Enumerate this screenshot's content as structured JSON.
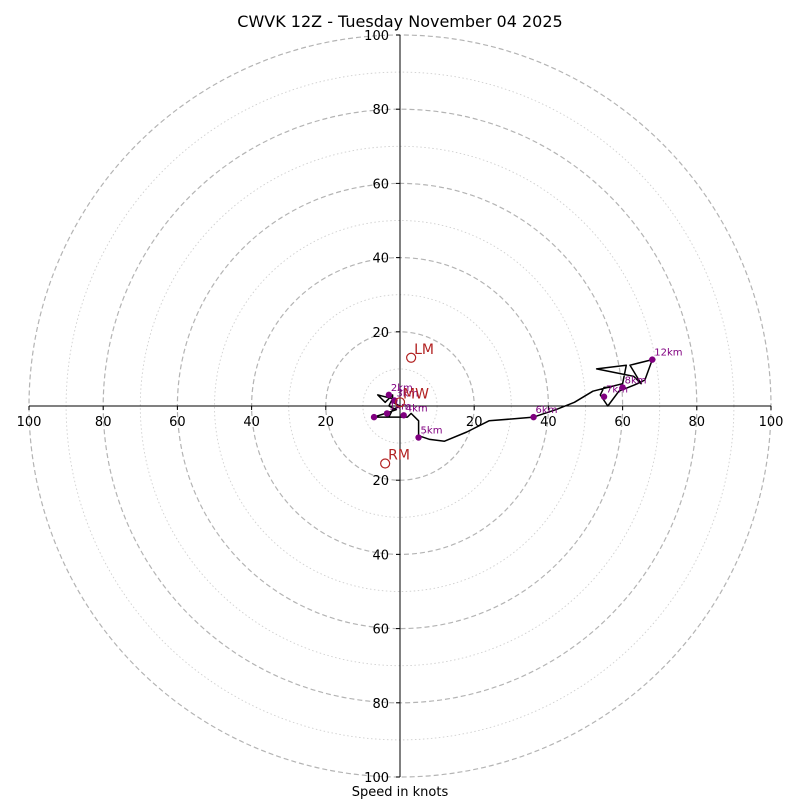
{
  "chart_data": {
    "type": "hodograph",
    "title": "CWVK 12Z - Tuesday November 04 2025",
    "xlabel": "Speed in knots",
    "max_speed": 100,
    "ring_step": 10,
    "labeled_rings": [
      20,
      40,
      60,
      80,
      100
    ],
    "x_tick_labels": [
      "100",
      "80",
      "60",
      "40",
      "20",
      "20",
      "40",
      "60",
      "80",
      "100"
    ],
    "x_tick_values": [
      -100,
      -80,
      -60,
      -40,
      -20,
      20,
      40,
      60,
      80,
      100
    ],
    "y_tick_labels": [
      "100",
      "80",
      "60",
      "40",
      "20",
      "20",
      "40",
      "60",
      "80",
      "100"
    ],
    "y_tick_values": [
      100,
      80,
      60,
      40,
      20,
      -20,
      -40,
      -60,
      -80,
      -100
    ],
    "colors": {
      "trace": "#000000",
      "height_marker": "#800080",
      "storm_motion": "#b22222",
      "ring": "#b4b4b4",
      "axis": "#000000"
    },
    "trace": [
      [
        -3,
        -3
      ],
      [
        -2,
        -1
      ],
      [
        0,
        0
      ],
      [
        -2,
        1
      ],
      [
        -2,
        3
      ],
      [
        -4,
        1
      ],
      [
        -6,
        3
      ],
      [
        -2,
        2
      ],
      [
        -3,
        0
      ],
      [
        -1,
        -1
      ],
      [
        -4,
        -2
      ],
      [
        -7,
        -3
      ],
      [
        -4,
        -3
      ],
      [
        -2,
        -3
      ],
      [
        -1,
        -3
      ],
      [
        2,
        -3
      ],
      [
        3,
        -2
      ],
      [
        5,
        -4
      ],
      [
        5,
        -8
      ],
      [
        8,
        -9
      ],
      [
        12,
        -9.5
      ],
      [
        18,
        -7
      ],
      [
        24,
        -4
      ],
      [
        30,
        -3.5
      ],
      [
        36,
        -3
      ],
      [
        42,
        -1
      ],
      [
        47,
        1
      ],
      [
        52,
        4
      ],
      [
        56,
        5
      ],
      [
        60,
        6
      ],
      [
        61,
        11
      ],
      [
        53,
        10
      ],
      [
        58,
        9
      ],
      [
        63,
        8
      ],
      [
        65,
        6
      ],
      [
        62,
        11
      ],
      [
        68,
        12.5
      ],
      [
        66,
        7
      ],
      [
        64,
        6
      ],
      [
        59,
        4
      ],
      [
        56,
        0
      ],
      [
        54,
        3
      ],
      [
        55,
        5
      ],
      [
        57,
        5
      ]
    ],
    "height_markers": [
      {
        "label": "",
        "u": -7,
        "v": -3
      },
      {
        "label": "1km",
        "u": -3.5,
        "v": -2
      },
      {
        "label": "2km",
        "u": -3,
        "v": 3
      },
      {
        "label": "3km",
        "u": -1.5,
        "v": 1.5
      },
      {
        "label": "4km",
        "u": 1,
        "v": -2.5
      },
      {
        "label": "5km",
        "u": 5,
        "v": -8.5
      },
      {
        "label": "6km",
        "u": 36,
        "v": -3
      },
      {
        "label": "7km",
        "u": 55,
        "v": 2.5
      },
      {
        "label": "8km",
        "u": 60,
        "v": 5
      },
      {
        "label": "12km",
        "u": 68,
        "v": 12.5
      }
    ],
    "storm_motion": [
      {
        "label": "LM",
        "u": 3,
        "v": 13
      },
      {
        "label": "MW",
        "u": 0,
        "v": 1
      },
      {
        "label": "RM",
        "u": -4,
        "v": -15.5
      }
    ]
  }
}
